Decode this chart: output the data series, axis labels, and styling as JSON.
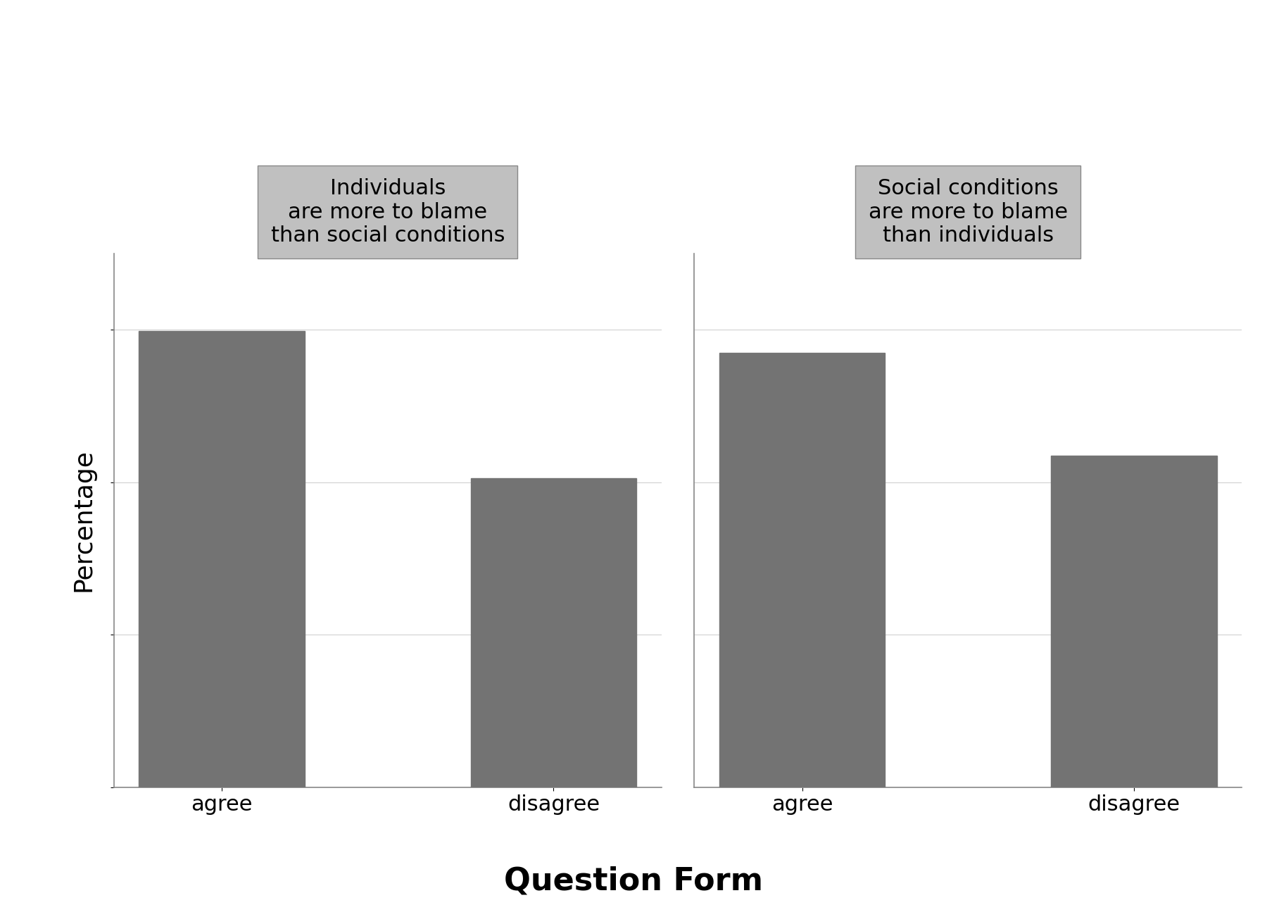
{
  "panel1_title": "Individuals\nare more to blame\nthan social conditions",
  "panel2_title": "Social conditions\nare more to blame\nthan individuals",
  "panel1_values": [
    59.8,
    40.5
  ],
  "panel2_values": [
    57.0,
    43.5
  ],
  "categories": [
    "agree",
    "disagree"
  ],
  "bar_color": "#737373",
  "panel_title_bg": "#c0c0c0",
  "plot_bg": "#ffffff",
  "outer_bg": "#ffffff",
  "ylabel": "Percentage",
  "xlabel": "Question Form",
  "ylim": [
    0,
    70
  ],
  "yticks": [
    0,
    20,
    40,
    60
  ],
  "ylabel_fontsize": 26,
  "xlabel_fontsize": 32,
  "tick_fontsize": 22,
  "panel_title_fontsize": 22,
  "bar_width": 0.5
}
